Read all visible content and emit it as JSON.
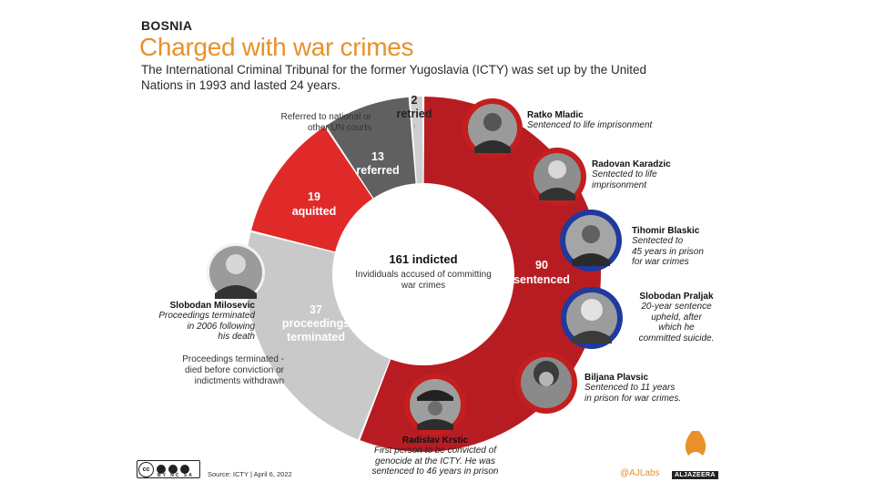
{
  "header": {
    "kicker": "BOSNIA",
    "title": "Charged with war crimes",
    "subtitle": "The International Criminal Tribunal for the former Yugoslavia (ICTY) was set up by the United Nations in 1993 and lasted 24 years."
  },
  "colors": {
    "accent": "#e8912b",
    "sentenced": "#b81c23",
    "acquitted": "#e02a2a",
    "referred": "#606060",
    "retried": "#cfcfcf",
    "terminated": "#c9c9c9",
    "portrait_ring_red": "#c41e1e",
    "portrait_ring_blue": "#1f3a9c"
  },
  "chart_data": {
    "type": "pie",
    "variant": "donut",
    "center": {
      "value": "161 indicted",
      "caption": "Invididuals accused of committing war crimes"
    },
    "slices": [
      {
        "label": "sentenced",
        "value": 90,
        "color": "#b81c23"
      },
      {
        "label": "proceedings terminated",
        "value": 37,
        "color": "#c9c9c9"
      },
      {
        "label": "aquitted",
        "value": 19,
        "color": "#e02a2a"
      },
      {
        "label": "referred",
        "value": 13,
        "color": "#606060"
      },
      {
        "label": "retried",
        "value": 2,
        "color": "#cfcfcf"
      }
    ]
  },
  "labels": {
    "sentenced": {
      "value": "90",
      "text": "sentenced"
    },
    "terminated": {
      "value": "37",
      "line1": "proceedings",
      "line2": "terminated"
    },
    "aquitted": {
      "value": "19",
      "text": "aquitted"
    },
    "referred": {
      "value": "13",
      "text": "referred"
    },
    "retried": {
      "value": "2",
      "text": "retried"
    }
  },
  "notes": {
    "referred_line1": "Referred to national or",
    "referred_line2": "other UN courts",
    "terminated_line1": "Proceedings terminated -",
    "terminated_line2": "died before conviction or",
    "terminated_line3": "indictments withdrawn"
  },
  "people": [
    {
      "name": "Ratko Mladic",
      "desc1": "Sentenced to life imprisonment",
      "desc2": "",
      "desc3": "",
      "ring": "red"
    },
    {
      "name": "Radovan Karadzic",
      "desc1": "Sentected to life",
      "desc2": "imprisonment",
      "desc3": "",
      "ring": "red"
    },
    {
      "name": "Tihomir Blaskic",
      "desc1": "Sentected to",
      "desc2": "45 years in prison",
      "desc3": "for war crimes",
      "ring": "blue"
    },
    {
      "name": "Slobodan Praljak",
      "desc1": "20-year sentence",
      "desc2": "upheld, after",
      "desc3": "which he",
      "desc4": "committed suicide.",
      "ring": "blue"
    },
    {
      "name": "Biljana Plavsic",
      "desc1": "Sentenced to 11 years",
      "desc2": "in prison for war crimes.",
      "desc3": "",
      "ring": "red"
    },
    {
      "name": "Radislav Krstic",
      "desc1": "First person to be convicted of",
      "desc2": "genocide at the ICTY. He was",
      "desc3": "sentenced to 46 years in prison",
      "ring": "red"
    },
    {
      "name": "Slobodan Milosevic",
      "desc1": "Proceedings terminated",
      "desc2": "in 2006 following",
      "desc3": "his death",
      "ring": "none"
    }
  ],
  "footer": {
    "cc": "cc",
    "cc_terms": "BY NC SA",
    "source": "Source: ICTY | April 6, 2022",
    "handle": "@AJLabs",
    "brand": "ALJAZEERA"
  }
}
